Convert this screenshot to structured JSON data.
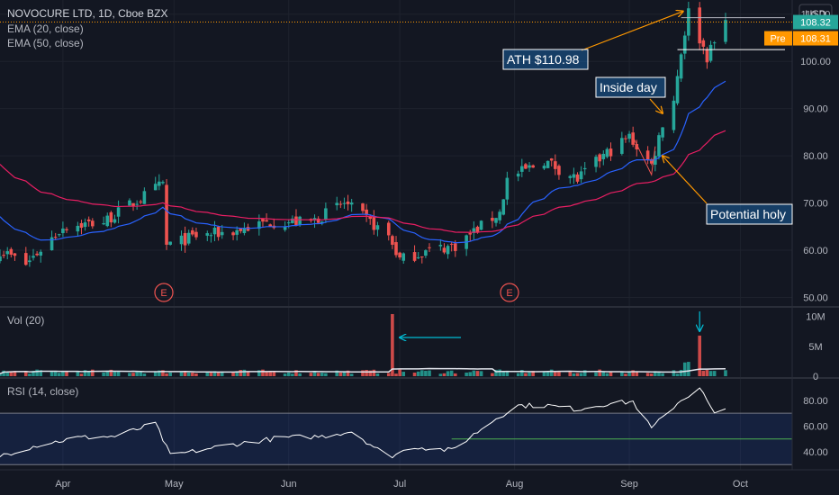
{
  "header": {
    "title": "NOVOCURE LTD, 1D, Cboe BZX",
    "ema20": "EMA (20, close)",
    "ema50": "EMA (50, close)",
    "currency": "USD"
  },
  "price_axis": {
    "ticks": [
      "110.00",
      "100.00",
      "90.00",
      "80.00",
      "70.00",
      "60.00",
      "50.00"
    ]
  },
  "price_labels": {
    "last": "108.32",
    "pre_tag": "Pre",
    "pre": "108.31"
  },
  "annotations": {
    "ath": "ATH $110.98",
    "inside_day": "Inside day",
    "potential": "Potential holy"
  },
  "earnings_marker": "E",
  "volume": {
    "label": "Vol (20)",
    "ticks": [
      "10M",
      "5M",
      "0"
    ]
  },
  "rsi": {
    "label": "RSI (14, close)",
    "ticks": [
      "80.00",
      "60.00",
      "40.00"
    ]
  },
  "time_axis": [
    "Apr",
    "May",
    "Jun",
    "Jul",
    "Aug",
    "Sep",
    "Oct"
  ],
  "colors": {
    "background": "#131722",
    "up": "#26a69a",
    "down": "#ef5350",
    "ema20": "#2962ff",
    "ema50": "#e91e63",
    "rsi": "#ffffff",
    "annotation_bg": "#1e88e5",
    "arrow": "#ff9800",
    "vol_arrow": "#00bcd4"
  },
  "chart_data": [
    {
      "type": "candlestick",
      "title": "NOVOCURE LTD, 1D, Cboe BZX",
      "x_range": [
        "2021-03-15",
        "2021-10-15"
      ],
      "ylim": [
        48,
        113
      ],
      "anchors": [
        [
          "2021-03-15",
          60
        ],
        [
          "2021-03-22",
          57
        ],
        [
          "2021-04-01",
          65
        ],
        [
          "2021-04-12",
          66
        ],
        [
          "2021-04-22",
          71
        ],
        [
          "2021-04-28",
          74
        ],
        [
          "2021-04-29",
          61
        ],
        [
          "2021-05-07",
          63
        ],
        [
          "2021-05-17",
          64
        ],
        [
          "2021-05-27",
          66
        ],
        [
          "2021-06-07",
          66
        ],
        [
          "2021-06-16",
          70
        ],
        [
          "2021-06-28",
          63
        ],
        [
          "2021-07-01",
          58
        ],
        [
          "2021-07-09",
          60
        ],
        [
          "2021-07-16",
          61
        ],
        [
          "2021-07-28",
          68
        ],
        [
          "2021-07-30",
          75
        ],
        [
          "2021-08-09",
          79
        ],
        [
          "2021-08-18",
          75
        ],
        [
          "2021-08-25",
          80
        ],
        [
          "2021-09-01",
          84
        ],
        [
          "2021-09-07",
          78
        ],
        [
          "2021-09-10",
          87
        ],
        [
          "2021-09-13",
          92
        ],
        [
          "2021-09-15",
          102
        ],
        [
          "2021-09-17",
          110.5
        ],
        [
          "2021-09-22",
          101
        ],
        [
          "2021-09-27",
          108.3
        ]
      ],
      "ema20_end": 98,
      "ema50_end": 86.5,
      "last": 108.32,
      "ath": 110.98
    },
    {
      "type": "bar",
      "name": "Vol (20)",
      "ylim": [
        0,
        11
      ],
      "typical": 0.8,
      "spikes": [
        [
          "2021-06-29",
          10.4
        ],
        [
          "2021-09-20",
          6.8
        ],
        [
          "2021-09-17",
          2.4
        ],
        [
          "2021-09-16",
          2.3
        ]
      ]
    },
    {
      "type": "line",
      "name": "RSI (14, close)",
      "ylim": [
        26,
        96
      ],
      "bands": [
        30,
        70
      ],
      "level": 50,
      "anchors": [
        [
          "2021-03-15",
          37
        ],
        [
          "2021-03-25",
          45
        ],
        [
          "2021-04-05",
          51
        ],
        [
          "2021-04-15",
          52
        ],
        [
          "2021-04-26",
          62
        ],
        [
          "2021-04-30",
          37
        ],
        [
          "2021-05-15",
          45
        ],
        [
          "2021-05-30",
          51
        ],
        [
          "2021-06-10",
          52
        ],
        [
          "2021-06-18",
          56
        ],
        [
          "2021-06-28",
          36
        ],
        [
          "2021-07-05",
          44
        ],
        [
          "2021-07-15",
          41
        ],
        [
          "2021-07-27",
          66
        ],
        [
          "2021-08-02",
          76
        ],
        [
          "2021-08-10",
          76
        ],
        [
          "2021-08-18",
          73
        ],
        [
          "2021-08-25",
          77
        ],
        [
          "2021-09-02",
          79
        ],
        [
          "2021-09-07",
          58
        ],
        [
          "2021-09-14",
          78
        ],
        [
          "2021-09-20",
          90
        ],
        [
          "2021-09-24",
          69
        ],
        [
          "2021-09-28",
          73
        ]
      ]
    }
  ]
}
